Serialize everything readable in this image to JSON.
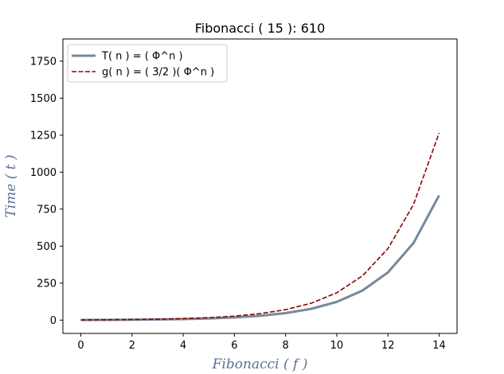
{
  "chart_data": {
    "type": "line",
    "title": "Fibonacci ( 15 ): 610",
    "xlabel": "Fibonacci ( f )",
    "ylabel": "Time ( t )",
    "label_color": "#5b6f96",
    "xlim": [
      -0.7,
      14.7
    ],
    "ylim": [
      -90,
      1900
    ],
    "xticks": [
      0,
      2,
      4,
      6,
      8,
      10,
      12,
      14
    ],
    "yticks": [
      0,
      250,
      500,
      750,
      1000,
      1250,
      1500,
      1750
    ],
    "legend_position": "top-left",
    "grid": false,
    "x": [
      0,
      1,
      2,
      3,
      4,
      5,
      6,
      7,
      8,
      9,
      10,
      11,
      12,
      13,
      14
    ],
    "series": [
      {
        "name": "T( n ) = ( Φ^n )",
        "color": "#778899",
        "style": "solid",
        "values": [
          1,
          1.62,
          2.62,
          4.24,
          6.85,
          11.09,
          17.94,
          29.03,
          46.98,
          76.01,
          122.99,
          199.0,
          321.99,
          521.0,
          842.99
        ]
      },
      {
        "name": "g( n ) = ( 3/2 )( Φ^n )",
        "color": "#8b0000",
        "style": "dashed",
        "values": [
          1.5,
          2.43,
          3.93,
          6.35,
          10.28,
          16.63,
          26.91,
          43.55,
          70.46,
          114.02,
          184.49,
          298.5,
          482.98,
          781.5,
          1264.48
        ]
      }
    ]
  }
}
